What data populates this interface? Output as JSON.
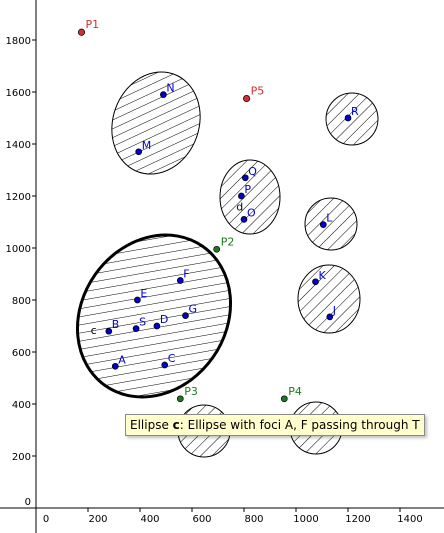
{
  "axes": {
    "x_ticks": [
      "0",
      "200",
      "400",
      "600",
      "800",
      "1000",
      "1200",
      "1400"
    ],
    "y_ticks": [
      "0",
      "200",
      "400",
      "600",
      "800",
      "1000",
      "1200",
      "1400",
      "1600",
      "1800"
    ]
  },
  "ellipses": [
    {
      "name": "N-M",
      "selected": false
    },
    {
      "name": "Q-P-O",
      "selected": false
    },
    {
      "name": "R",
      "selected": false
    },
    {
      "name": "L",
      "selected": false
    },
    {
      "name": "K-J",
      "selected": false
    },
    {
      "name": "c",
      "selected": true
    },
    {
      "name": "bottom-left",
      "selected": false
    },
    {
      "name": "bottom-right",
      "selected": false
    }
  ],
  "blue_points": [
    {
      "label": "N",
      "x": 490,
      "y": 1590
    },
    {
      "label": "M",
      "x": 395,
      "y": 1370
    },
    {
      "label": "Q",
      "x": 805,
      "y": 1270
    },
    {
      "label": "P",
      "x": 790,
      "y": 1200
    },
    {
      "label": "O",
      "x": 800,
      "y": 1110
    },
    {
      "label": "R",
      "x": 1200,
      "y": 1500
    },
    {
      "label": "L",
      "x": 1105,
      "y": 1090
    },
    {
      "label": "K",
      "x": 1075,
      "y": 870
    },
    {
      "label": "J",
      "x": 1130,
      "y": 735
    },
    {
      "label": "F",
      "x": 555,
      "y": 875
    },
    {
      "label": "E",
      "x": 390,
      "y": 800
    },
    {
      "label": "G",
      "x": 575,
      "y": 740
    },
    {
      "label": "D",
      "x": 465,
      "y": 700
    },
    {
      "label": "S",
      "x": 385,
      "y": 690
    },
    {
      "label": "B",
      "x": 280,
      "y": 680
    },
    {
      "label": "A",
      "x": 305,
      "y": 545
    },
    {
      "label": "C",
      "x": 495,
      "y": 550
    }
  ],
  "red_points": [
    {
      "label": "P1",
      "x": 175,
      "y": 1830
    },
    {
      "label": "P5",
      "x": 810,
      "y": 1575
    }
  ],
  "green_points": [
    {
      "label": "P2",
      "x": 695,
      "y": 995
    },
    {
      "label": "P3",
      "x": 555,
      "y": 420
    },
    {
      "label": "P4",
      "x": 955,
      "y": 420
    }
  ],
  "extra_labels": [
    {
      "text": "d",
      "x": 770,
      "y": 1145
    },
    {
      "text": "c",
      "x": 210,
      "y": 670
    }
  ],
  "tooltip": {
    "prefix": "Ellipse ",
    "object": "c",
    "rest": ": Ellipse with foci A, F passing through T"
  },
  "colors": {
    "blue": "#0000cc",
    "red": "#d32f2f",
    "green": "#1f7a1f",
    "tooltip_bg": "#ffffcc"
  }
}
